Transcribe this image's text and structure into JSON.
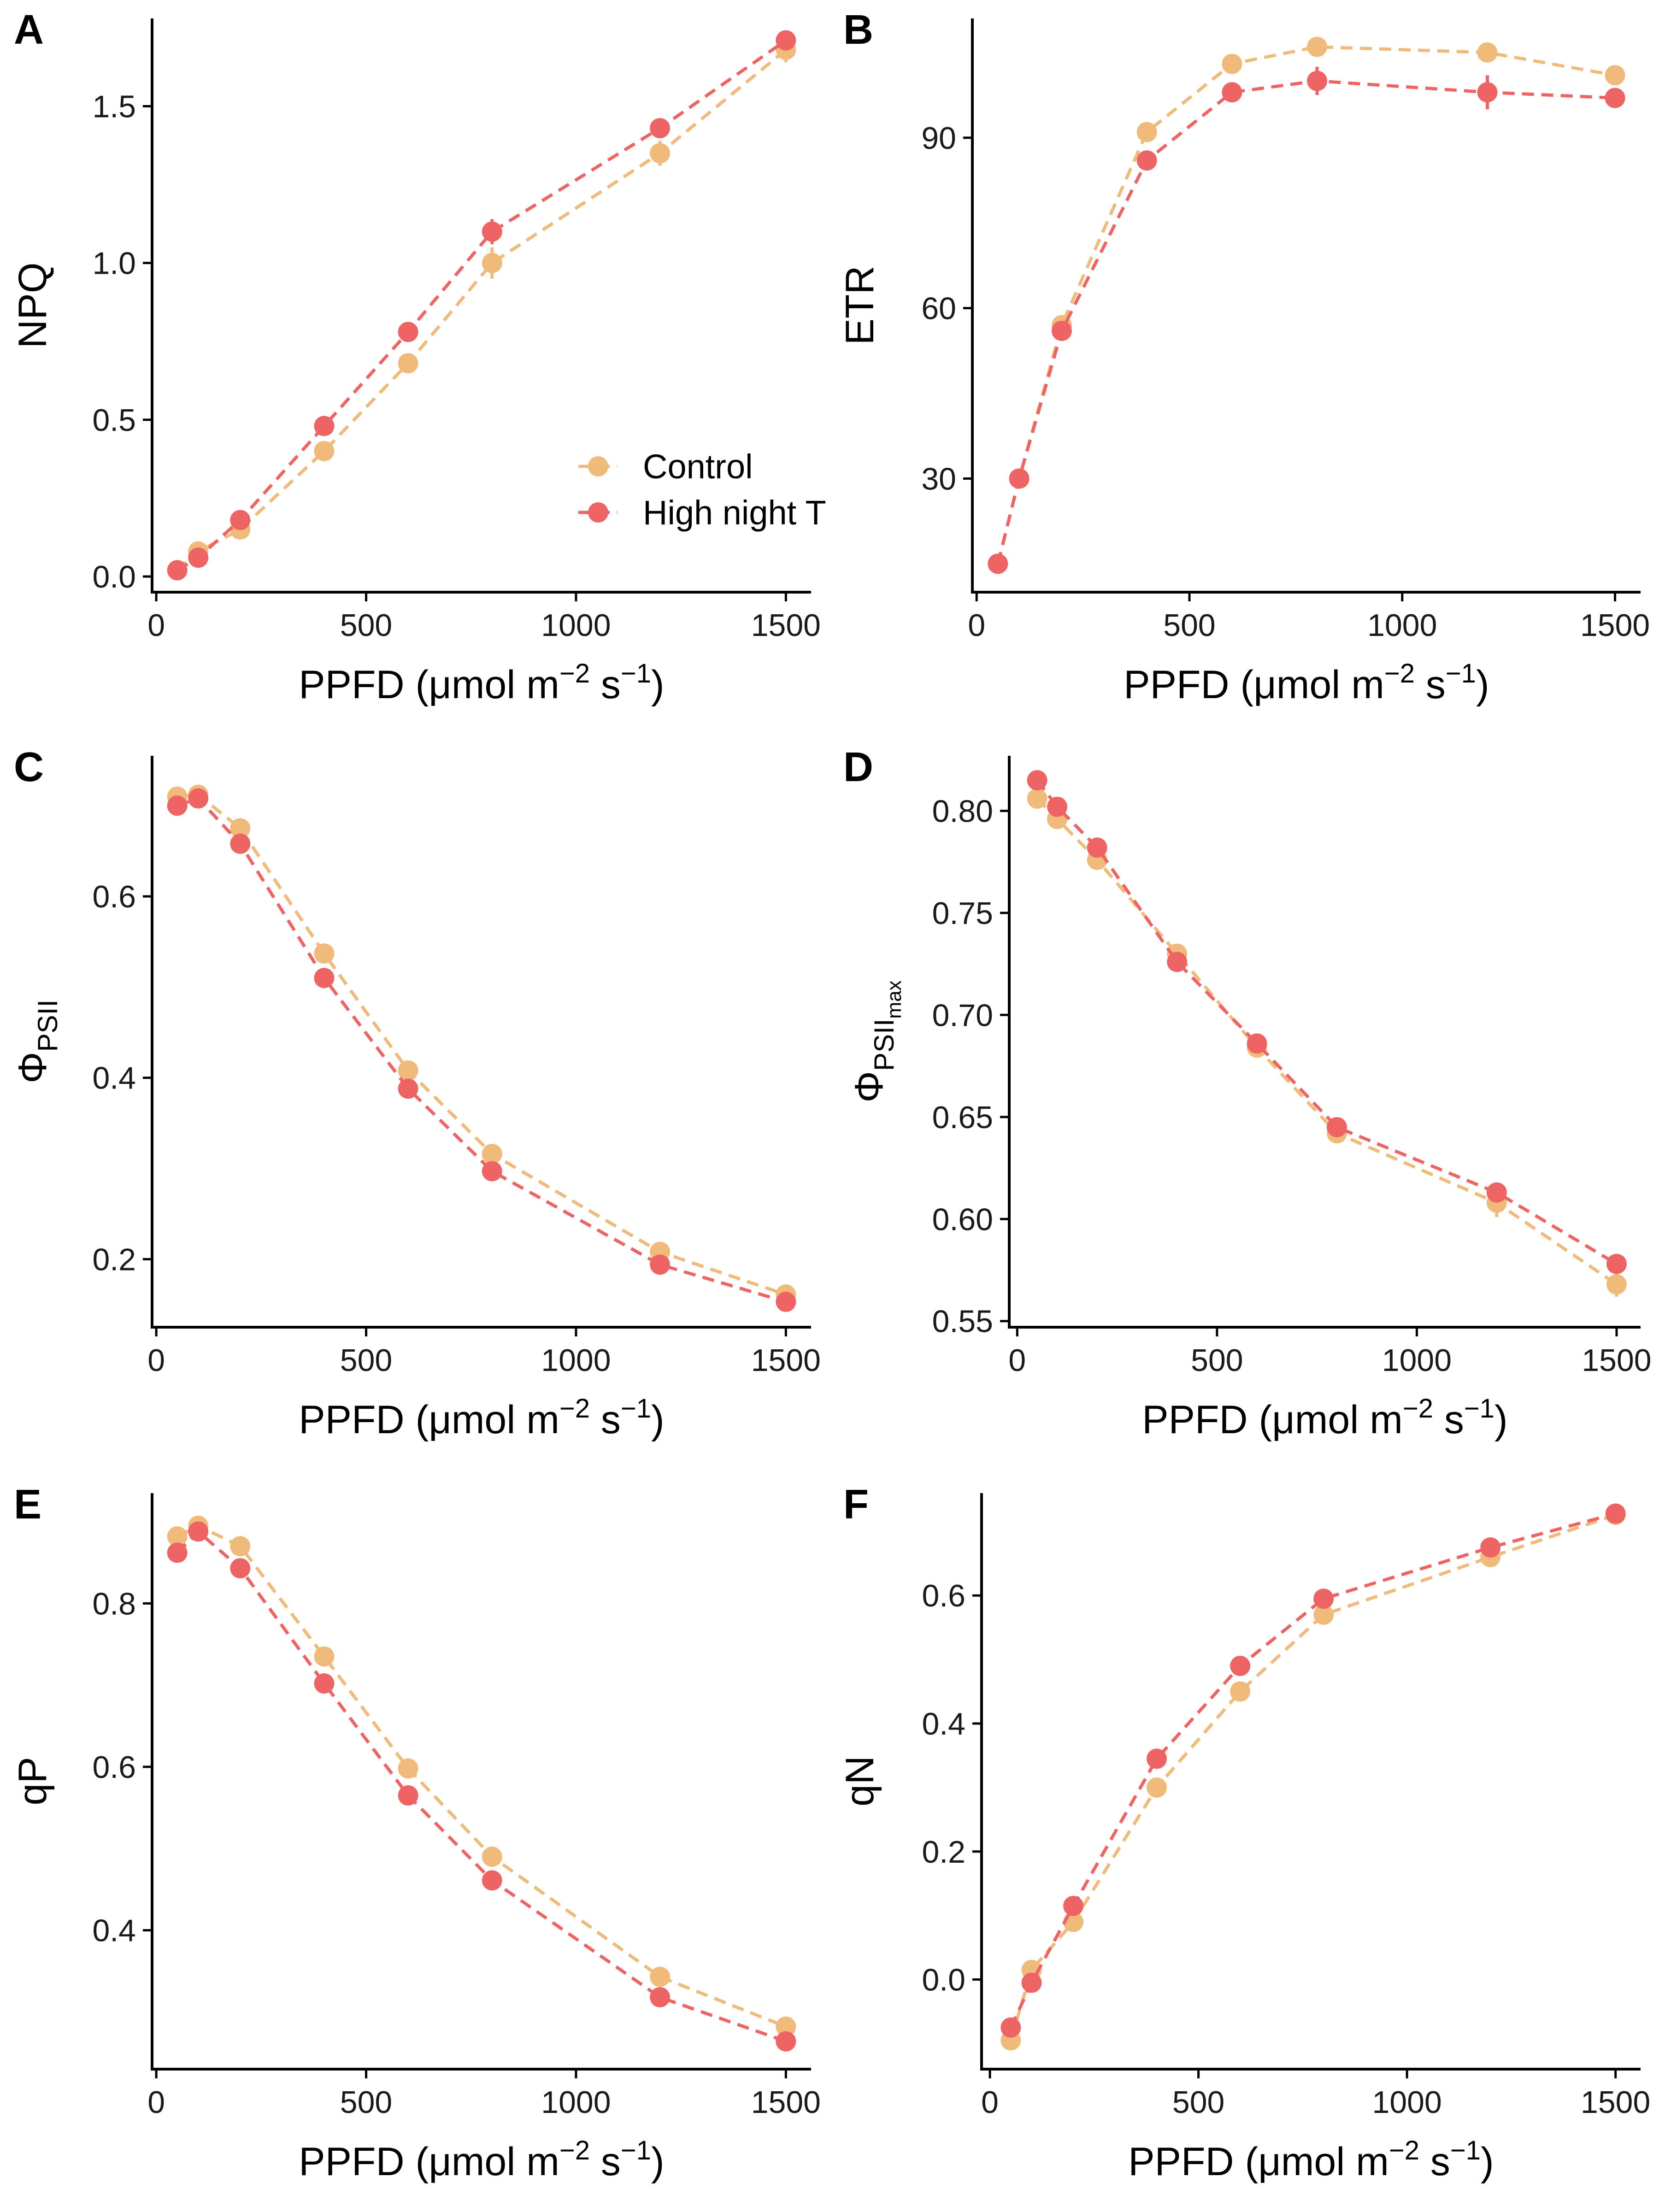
{
  "colors": {
    "control": "#F0BB7A",
    "high": "#EE6464"
  },
  "legend": {
    "position": "inside-bottom-right of panel A",
    "items": [
      "Control",
      "High night T"
    ]
  },
  "chart_data": [
    {
      "panel": "A",
      "type": "line",
      "xlabel": "PPFD (μmol m",
      "xlabel_sup1": "−2",
      "xlabel_mid": " s",
      "xlabel_sup2": "−1",
      "xlabel_end": ")",
      "ylabel": "NPQ",
      "ylabel_sub": "",
      "xlim": [
        -10,
        1560
      ],
      "ylim": [
        -0.05,
        1.78
      ],
      "xticks": [
        0,
        500,
        1000,
        1500
      ],
      "yticks": [
        0.0,
        0.5,
        1.0,
        1.5
      ],
      "ytick_labels": [
        "0.0",
        "0.5",
        "1.0",
        "1.5"
      ],
      "x": [
        50,
        100,
        200,
        400,
        600,
        800,
        1200,
        1500
      ],
      "series": [
        {
          "name": "Control",
          "values": [
            0.02,
            0.08,
            0.15,
            0.4,
            0.68,
            1.0,
            1.35,
            1.68
          ],
          "err": [
            0.01,
            0.01,
            0.02,
            0.02,
            0.02,
            0.05,
            0.04,
            0.04
          ]
        },
        {
          "name": "High night T",
          "values": [
            0.02,
            0.06,
            0.18,
            0.48,
            0.78,
            1.1,
            1.43,
            1.71
          ],
          "err": [
            0.01,
            0.01,
            0.02,
            0.02,
            0.02,
            0.04,
            0.03,
            0.03
          ]
        }
      ]
    },
    {
      "panel": "B",
      "type": "line",
      "xlabel": "PPFD (μmol m",
      "xlabel_sup1": "−2",
      "xlabel_mid": " s",
      "xlabel_sup2": "−1",
      "xlabel_end": ")",
      "ylabel": "ETR",
      "ylabel_sub": "",
      "xlim": [
        -10,
        1560
      ],
      "ylim": [
        10,
        111
      ],
      "xticks": [
        0,
        500,
        1000,
        1500
      ],
      "yticks": [
        30,
        60,
        90
      ],
      "ytick_labels": [
        "30",
        "60",
        "90"
      ],
      "x": [
        50,
        100,
        200,
        400,
        600,
        800,
        1200,
        1500
      ],
      "series": [
        {
          "name": "Control",
          "values": [
            15,
            30,
            57,
            91,
            103,
            106,
            105,
            101
          ],
          "err": [
            0.5,
            0.5,
            1,
            1,
            1,
            1,
            1,
            1
          ]
        },
        {
          "name": "High night T",
          "values": [
            15,
            30,
            56,
            86,
            98,
            100,
            98,
            97
          ],
          "err": [
            0.5,
            0.5,
            1.5,
            1,
            1,
            2.5,
            3,
            1
          ]
        }
      ]
    },
    {
      "panel": "C",
      "type": "line",
      "xlabel": "PPFD (μmol m",
      "xlabel_sup1": "−2",
      "xlabel_mid": " s",
      "xlabel_sup2": "−1",
      "xlabel_end": ")",
      "ylabel": "Φ",
      "ylabel_sub": "PSII",
      "xlim": [
        -10,
        1560
      ],
      "ylim": [
        0.125,
        0.755
      ],
      "xticks": [
        0,
        500,
        1000,
        1500
      ],
      "yticks": [
        0.2,
        0.4,
        0.6
      ],
      "ytick_labels": [
        "0.2",
        "0.4",
        "0.6"
      ],
      "x": [
        50,
        100,
        200,
        400,
        600,
        800,
        1200,
        1500
      ],
      "series": [
        {
          "name": "Control",
          "values": [
            0.71,
            0.712,
            0.675,
            0.537,
            0.408,
            0.316,
            0.208,
            0.161
          ],
          "err": [
            0.004,
            0.004,
            0.005,
            0.006,
            0.006,
            0.005,
            0.004,
            0.004
          ]
        },
        {
          "name": "High night T",
          "values": [
            0.7,
            0.708,
            0.658,
            0.51,
            0.388,
            0.297,
            0.194,
            0.153
          ],
          "err": [
            0.004,
            0.004,
            0.005,
            0.006,
            0.006,
            0.005,
            0.004,
            0.004
          ]
        }
      ]
    },
    {
      "panel": "D",
      "type": "line",
      "xlabel": "PPFD (μmol m",
      "xlabel_sup1": "−2",
      "xlabel_mid": " s",
      "xlabel_sup2": "−1",
      "xlabel_end": ")",
      "ylabel": "Φ",
      "ylabel_sub": "PSII",
      "ylabel_subsub": "max",
      "xlim": [
        -20,
        1560
      ],
      "ylim": [
        0.547,
        0.827
      ],
      "xticks": [
        0,
        500,
        1000,
        1500
      ],
      "yticks": [
        0.55,
        0.6,
        0.65,
        0.7,
        0.75,
        0.8
      ],
      "ytick_labels": [
        "0.55",
        "0.60",
        "0.65",
        "0.70",
        "0.75",
        "0.80"
      ],
      "x": [
        50,
        100,
        200,
        400,
        600,
        800,
        1200,
        1500
      ],
      "series": [
        {
          "name": "Control",
          "values": [
            0.806,
            0.796,
            0.776,
            0.73,
            0.684,
            0.642,
            0.608,
            0.568
          ],
          "err": [
            0.003,
            0.003,
            0.004,
            0.004,
            0.004,
            0.003,
            0.007,
            0.006
          ]
        },
        {
          "name": "High night T",
          "values": [
            0.815,
            0.802,
            0.782,
            0.726,
            0.686,
            0.645,
            0.613,
            0.578
          ],
          "err": [
            0.003,
            0.003,
            0.004,
            0.004,
            0.004,
            0.003,
            0.004,
            0.003
          ]
        }
      ]
    },
    {
      "panel": "E",
      "type": "line",
      "xlabel": "PPFD (μmol m",
      "xlabel_sup1": "−2",
      "xlabel_mid": " s",
      "xlabel_sup2": "−1",
      "xlabel_end": ")",
      "ylabel": "qP",
      "ylabel_sub": "",
      "xlim": [
        -10,
        1560
      ],
      "ylim": [
        0.23,
        0.935
      ],
      "xticks": [
        0,
        500,
        1000,
        1500
      ],
      "yticks": [
        0.4,
        0.6,
        0.8
      ],
      "ytick_labels": [
        "0.4",
        "0.6",
        "0.8"
      ],
      "x": [
        50,
        100,
        200,
        400,
        600,
        800,
        1200,
        1500
      ],
      "series": [
        {
          "name": "Control",
          "values": [
            0.882,
            0.895,
            0.87,
            0.735,
            0.598,
            0.49,
            0.343,
            0.282
          ],
          "err": [
            0.005,
            0.005,
            0.006,
            0.007,
            0.007,
            0.006,
            0.005,
            0.005
          ]
        },
        {
          "name": "High night T",
          "values": [
            0.862,
            0.888,
            0.843,
            0.702,
            0.565,
            0.461,
            0.318,
            0.264
          ],
          "err": [
            0.005,
            0.005,
            0.006,
            0.007,
            0.007,
            0.006,
            0.005,
            0.005
          ]
        }
      ]
    },
    {
      "panel": "F",
      "type": "line",
      "xlabel": "PPFD (μmol m",
      "xlabel_sup1": "−2",
      "xlabel_mid": " s",
      "xlabel_sup2": "−1",
      "xlabel_end": ")",
      "ylabel": "qN",
      "ylabel_sub": "",
      "xlim": [
        -20,
        1560
      ],
      "ylim": [
        -0.14,
        0.76
      ],
      "xticks": [
        0,
        500,
        1000,
        1500
      ],
      "yticks": [
        0.0,
        0.2,
        0.4,
        0.6
      ],
      "ytick_labels": [
        "0.0",
        "0.2",
        "0.4",
        "0.6"
      ],
      "x": [
        50,
        100,
        200,
        400,
        600,
        800,
        1200,
        1500
      ],
      "series": [
        {
          "name": "Control",
          "values": [
            -0.095,
            0.015,
            0.09,
            0.3,
            0.45,
            0.57,
            0.66,
            0.726
          ],
          "err": [
            0.008,
            0.008,
            0.008,
            0.008,
            0.008,
            0.008,
            0.006,
            0.006
          ]
        },
        {
          "name": "High night T",
          "values": [
            -0.075,
            -0.005,
            0.115,
            0.345,
            0.49,
            0.595,
            0.675,
            0.728
          ],
          "err": [
            0.008,
            0.008,
            0.008,
            0.008,
            0.008,
            0.008,
            0.006,
            0.006
          ]
        }
      ]
    }
  ]
}
